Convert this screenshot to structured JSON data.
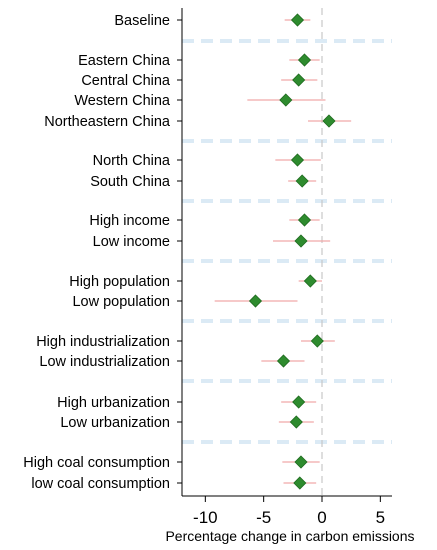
{
  "chart_data": {
    "type": "scatter",
    "subtype": "coefficient-plot-with-confidence-intervals",
    "xlabel": "Percentage change in carbon emissions",
    "xlim": [
      -12,
      6
    ],
    "xticks": [
      -10,
      -5,
      0,
      5
    ],
    "xtick_labels": [
      "-10",
      "-5",
      "0",
      "5"
    ],
    "reference_line_x": 0,
    "grid": false,
    "legend": "none",
    "colors": {
      "point": "#2e8b2e",
      "point_stroke": "#1f6a1f",
      "ci": "#f0a9a9",
      "reference_line": "#c7c7c7",
      "group_separator": "#dbeaf5",
      "axis": "#000000",
      "text": "#000000"
    },
    "groups": [
      {
        "rows": [
          {
            "label": "Baseline",
            "estimate": -2.1,
            "ci": [
              -3.2,
              -1.0
            ]
          }
        ]
      },
      {
        "rows": [
          {
            "label": "Eastern China",
            "estimate": -1.5,
            "ci": [
              -2.8,
              -0.2
            ]
          },
          {
            "label": "Central China",
            "estimate": -2.0,
            "ci": [
              -3.5,
              -0.4
            ]
          },
          {
            "label": "Western China",
            "estimate": -3.1,
            "ci": [
              -6.4,
              0.3
            ]
          },
          {
            "label": "Northeastern China",
            "estimate": 0.6,
            "ci": [
              -1.2,
              2.5
            ]
          }
        ]
      },
      {
        "rows": [
          {
            "label": "North China",
            "estimate": -2.1,
            "ci": [
              -4.0,
              -0.1
            ]
          },
          {
            "label": "South China",
            "estimate": -1.7,
            "ci": [
              -2.9,
              -0.5
            ]
          }
        ]
      },
      {
        "rows": [
          {
            "label": "High income",
            "estimate": -1.5,
            "ci": [
              -2.8,
              -0.2
            ]
          },
          {
            "label": "Low income",
            "estimate": -1.8,
            "ci": [
              -4.2,
              0.7
            ]
          }
        ]
      },
      {
        "rows": [
          {
            "label": "High population",
            "estimate": -1.0,
            "ci": [
              -2.0,
              0.0
            ]
          },
          {
            "label": "Low population",
            "estimate": -5.7,
            "ci": [
              -9.2,
              -2.1
            ]
          }
        ]
      },
      {
        "rows": [
          {
            "label": "High industrialization",
            "estimate": -0.4,
            "ci": [
              -1.8,
              1.1
            ]
          },
          {
            "label": "Low industrialization",
            "estimate": -3.3,
            "ci": [
              -5.2,
              -1.5
            ]
          }
        ]
      },
      {
        "rows": [
          {
            "label": "High urbanization",
            "estimate": -2.0,
            "ci": [
              -3.5,
              -0.5
            ]
          },
          {
            "label": "Low urbanization",
            "estimate": -2.2,
            "ci": [
              -3.7,
              -0.7
            ]
          }
        ]
      },
      {
        "rows": [
          {
            "label": "High coal consumption",
            "estimate": -1.8,
            "ci": [
              -3.4,
              -0.2
            ]
          },
          {
            "label": "low coal consumption",
            "estimate": -1.9,
            "ci": [
              -3.3,
              -0.5
            ]
          }
        ]
      }
    ]
  }
}
